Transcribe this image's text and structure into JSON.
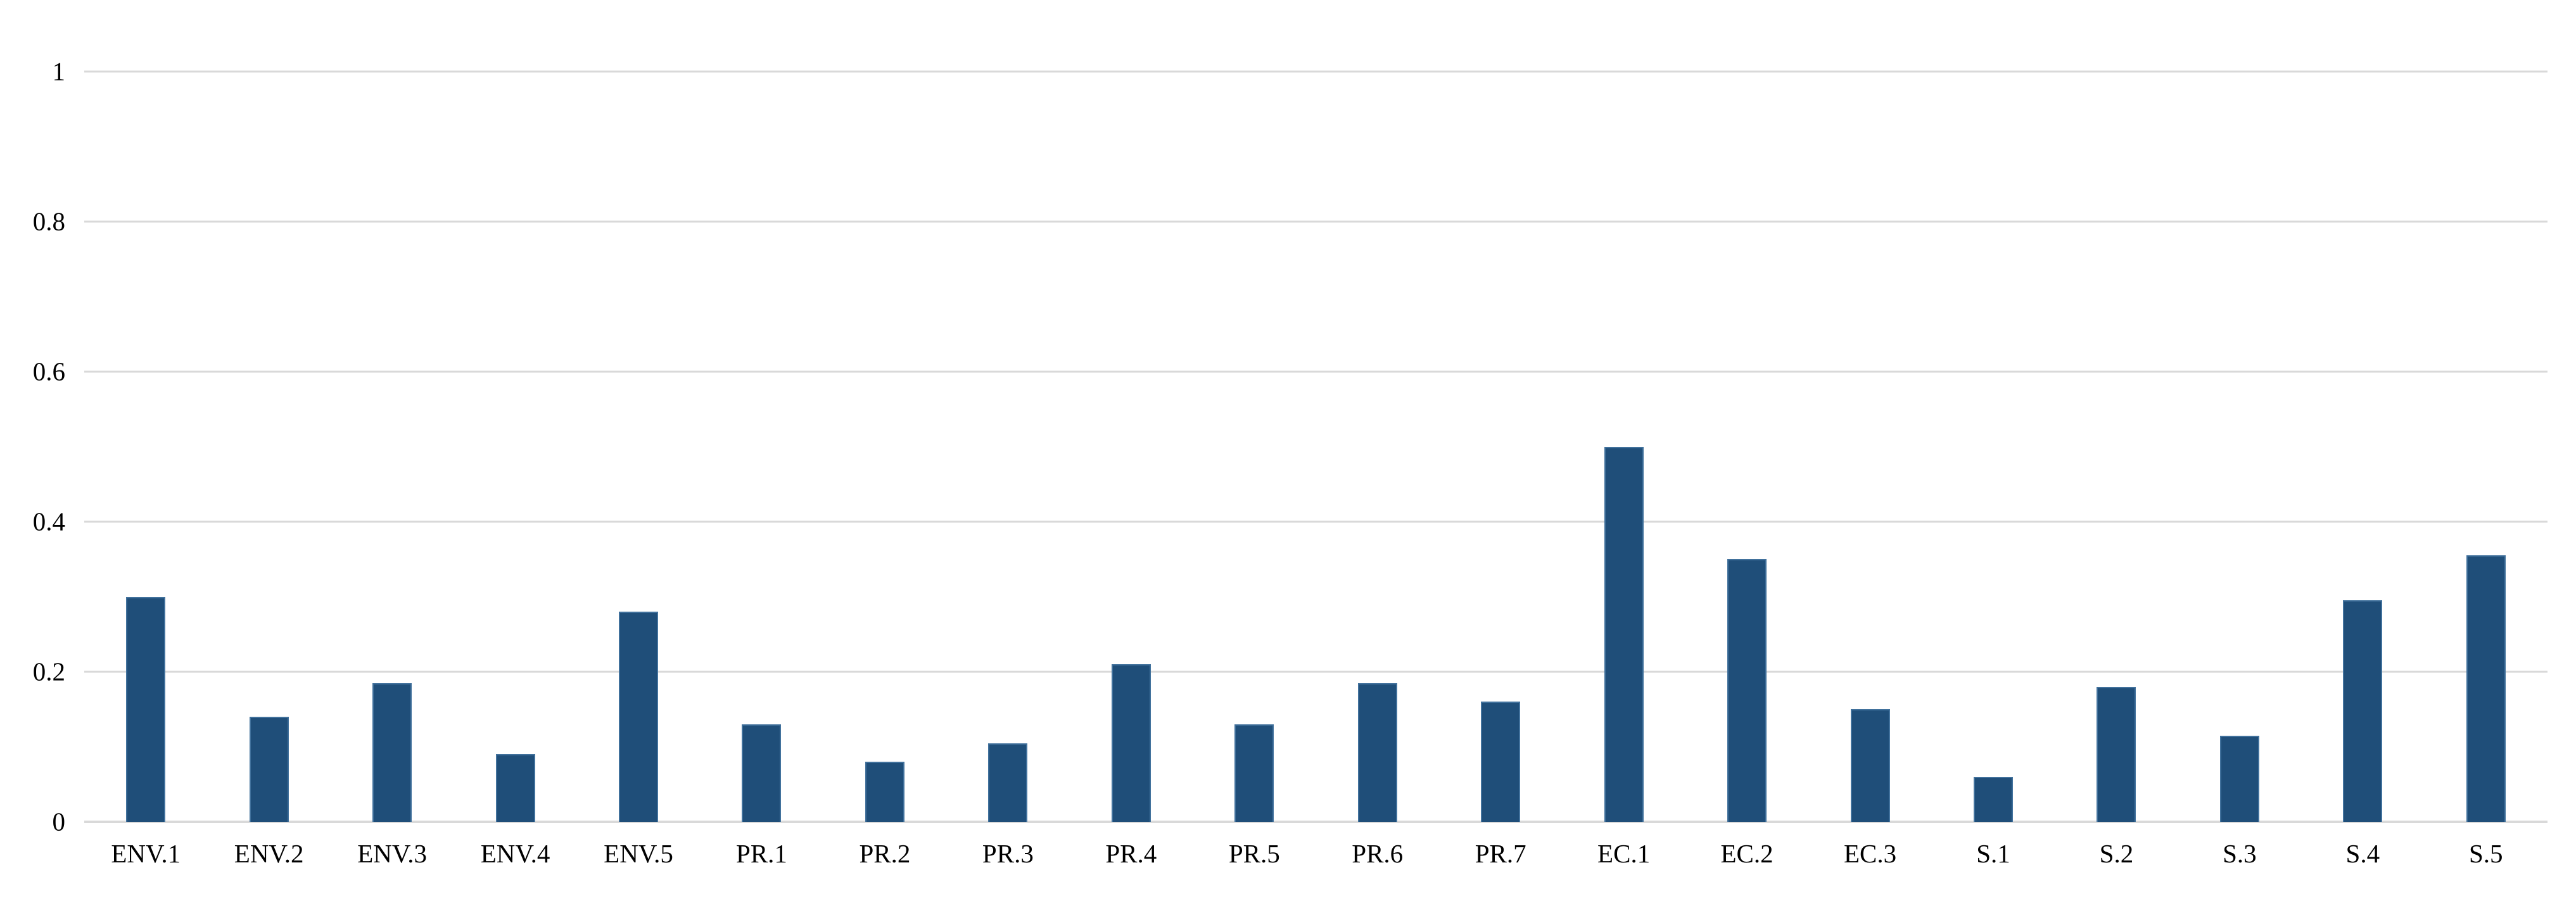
{
  "chart_data": {
    "type": "bar",
    "title": "",
    "xlabel": "",
    "ylabel": "",
    "categories": [
      "ENV.1",
      "ENV.2",
      "ENV.3",
      "ENV.4",
      "ENV.5",
      "PR.1",
      "PR.2",
      "PR.3",
      "PR.4",
      "PR.5",
      "PR.6",
      "PR.7",
      "EC.1",
      "EC.2",
      "EC.3",
      "S.1",
      "S.2",
      "S.3",
      "S.4",
      "S.5"
    ],
    "values": [
      0.3,
      0.14,
      0.185,
      0.09,
      0.28,
      0.13,
      0.08,
      0.105,
      0.21,
      0.13,
      0.185,
      0.16,
      0.5,
      0.35,
      0.15,
      0.06,
      0.18,
      0.115,
      0.295,
      0.355
    ],
    "ylim": [
      0,
      1
    ],
    "yticks": [
      0,
      0.2,
      0.4,
      0.6,
      0.8,
      1
    ],
    "ytick_labels": [
      "0",
      "0.2",
      "0.4",
      "0.6",
      "0.8",
      "1"
    ],
    "grid": true,
    "legend": false,
    "colors": {
      "bar_fill": "#1f4e79",
      "bar_border": "#41719c",
      "gridline": "#d9d9d9",
      "background": "#ffffff",
      "text": "#000000"
    }
  }
}
